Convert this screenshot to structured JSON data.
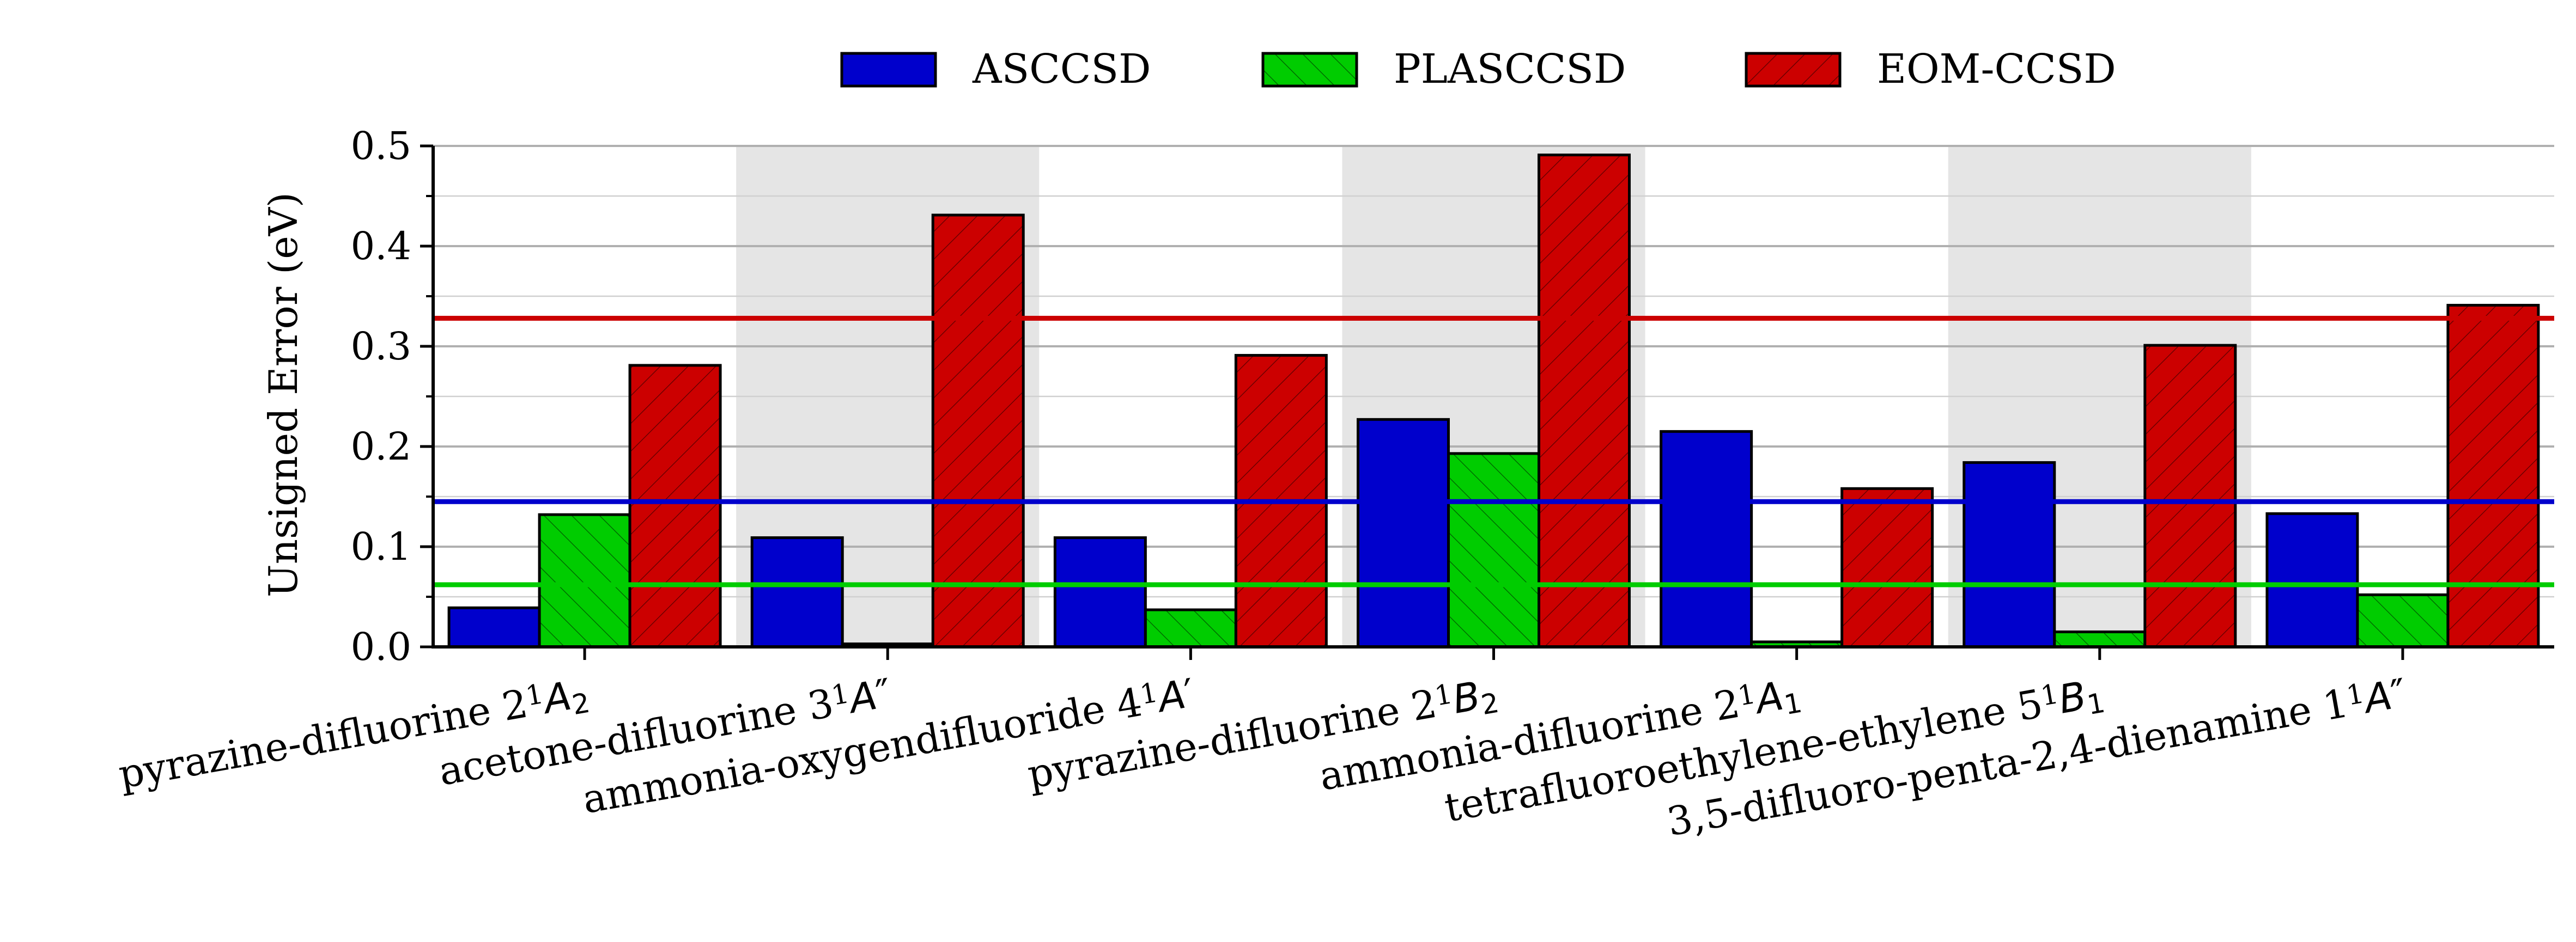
{
  "chart_data": {
    "type": "bar",
    "title": "",
    "xlabel": "",
    "ylabel": "Unsigned Error (eV)",
    "ylim": [
      0,
      0.5
    ],
    "yticks": [
      "0.0",
      "0.1",
      "0.2",
      "0.3",
      "0.4",
      "0.5"
    ],
    "grid": true,
    "legend_placement": "top-center",
    "categories": [
      {
        "name": "pyrazine-difluorine 2",
        "sup": "1",
        "state": "A",
        "sub": "2",
        "prime": ""
      },
      {
        "name": "acetone-difluorine 3",
        "sup": "1",
        "state": "A",
        "sub": "",
        "prime": "″"
      },
      {
        "name": "ammonia-oxygendifluoride 4",
        "sup": "1",
        "state": "A",
        "sub": "",
        "prime": "′"
      },
      {
        "name": "pyrazine-difluorine 2",
        "sup": "1",
        "state": "B",
        "sub": "2",
        "prime": ""
      },
      {
        "name": "ammonia-difluorine 2",
        "sup": "1",
        "state": "A",
        "sub": "1",
        "prime": ""
      },
      {
        "name": "tetrafluoroethylene-ethylene 5",
        "sup": "1",
        "state": "B",
        "sub": "1",
        "prime": ""
      },
      {
        "name": "3,5-difluoro-penta-2,4-dienamine 1",
        "sup": "1",
        "state": "A",
        "sub": "",
        "prime": "″"
      }
    ],
    "series": [
      {
        "name": "ASCCSD",
        "color": "#0000cc",
        "hatch": "none",
        "values": [
          0.039,
          0.109,
          0.109,
          0.227,
          0.215,
          0.184,
          0.133
        ],
        "mean": 0.145
      },
      {
        "name": "PLASCCSD",
        "color": "#00cc00",
        "hatch": "backslash",
        "values": [
          0.132,
          0.003,
          0.037,
          0.193,
          0.005,
          0.015,
          0.052
        ],
        "mean": 0.062
      },
      {
        "name": "EOM-CCSD",
        "color": "#cc0000",
        "hatch": "slash",
        "values": [
          0.281,
          0.431,
          0.291,
          0.491,
          0.158,
          0.301,
          0.341
        ],
        "mean": 0.328
      }
    ],
    "shaded_categories": [
      1,
      3,
      5
    ]
  }
}
